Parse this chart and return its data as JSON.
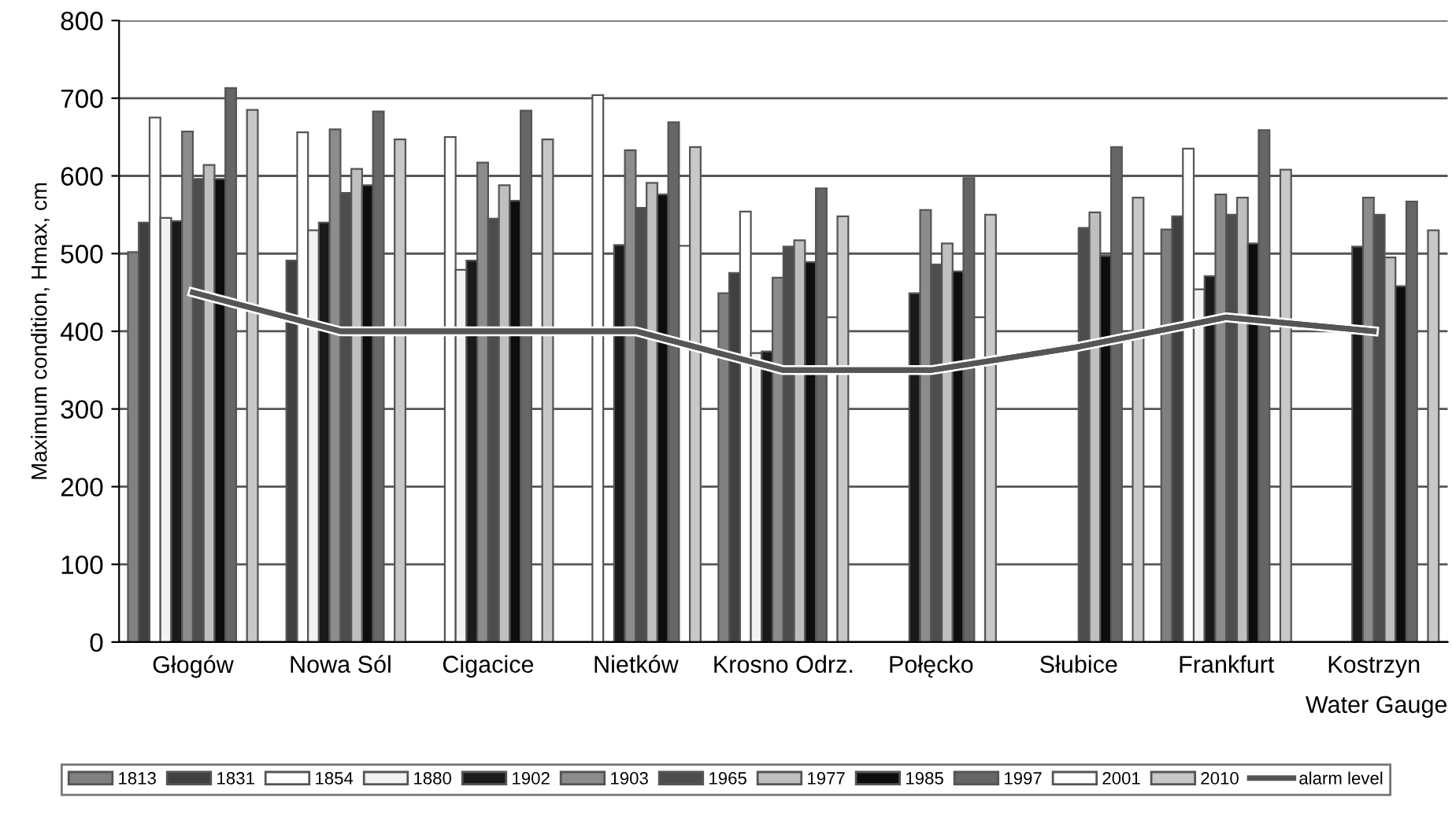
{
  "chart_data": {
    "type": "bar",
    "ylabel": "Maximum condition, Hmax, cm",
    "xlabel": "Water Gauge",
    "categories": [
      "Głogów",
      "Nowa Sól",
      "Cigacice",
      "Nietków",
      "Krosno Odrz.",
      "Połęcko",
      "Słubice",
      "Frankfurt",
      "Kostrzyn"
    ],
    "ylim": [
      0,
      800
    ],
    "yticks": [
      0,
      100,
      200,
      300,
      400,
      500,
      600,
      700,
      800
    ],
    "grid": "y",
    "legend": "bottom",
    "series": [
      {
        "name": "1813",
        "color": "#808080",
        "values": [
          502,
          null,
          null,
          null,
          449,
          null,
          null,
          531,
          null
        ]
      },
      {
        "name": "1831",
        "color": "#404040",
        "values": [
          540,
          491,
          null,
          null,
          475,
          null,
          null,
          548,
          null
        ]
      },
      {
        "name": "1854",
        "color": "#ffffff",
        "values": [
          675,
          656,
          650,
          704,
          554,
          null,
          null,
          635,
          null
        ]
      },
      {
        "name": "1880",
        "color": "#f2f2f2",
        "values": [
          546,
          530,
          479,
          null,
          372,
          null,
          null,
          454,
          null
        ]
      },
      {
        "name": "1902",
        "color": "#1a1a1a",
        "values": [
          542,
          540,
          491,
          511,
          374,
          449,
          null,
          471,
          509
        ]
      },
      {
        "name": "1903",
        "color": "#8c8c8c",
        "values": [
          657,
          660,
          617,
          633,
          469,
          556,
          null,
          576,
          572
        ]
      },
      {
        "name": "1965",
        "color": "#4d4d4d",
        "values": [
          596,
          578,
          545,
          559,
          509,
          486,
          533,
          550,
          550
        ]
      },
      {
        "name": "1977",
        "color": "#bfbfbf",
        "values": [
          614,
          609,
          588,
          591,
          517,
          513,
          553,
          572,
          495
        ]
      },
      {
        "name": "1985",
        "color": "#0d0d0d",
        "values": [
          596,
          588,
          568,
          576,
          489,
          477,
          497,
          513,
          458
        ]
      },
      {
        "name": "1997",
        "color": "#666666",
        "values": [
          713,
          683,
          684,
          669,
          584,
          597,
          637,
          659,
          567
        ]
      },
      {
        "name": "2001",
        "color": "#ffffff",
        "values": [
          null,
          null,
          null,
          510,
          418,
          418,
          null,
          null,
          null
        ]
      },
      {
        "name": "2010",
        "color": "#c8c8c8",
        "values": [
          685,
          647,
          647,
          637,
          548,
          550,
          572,
          608,
          530
        ]
      },
      {
        "name": "alarm level",
        "type": "line",
        "color": "#555555",
        "values": [
          450,
          400,
          400,
          400,
          350,
          350,
          380,
          418,
          400
        ]
      }
    ]
  }
}
